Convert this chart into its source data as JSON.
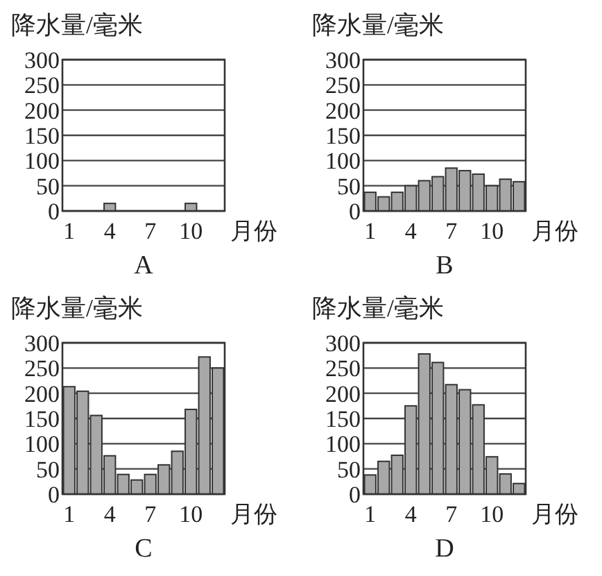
{
  "chart_data": [
    {
      "type": "bar",
      "title": "A",
      "ylabel": "降水量/毫米",
      "xlabel": "月份",
      "categories": [
        "1",
        null,
        null,
        "4",
        null,
        null,
        "7",
        null,
        null,
        "10",
        null,
        null
      ],
      "values": [
        0,
        0,
        0,
        15,
        0,
        0,
        0,
        0,
        0,
        15,
        0,
        0
      ],
      "color": "#a8a8a8",
      "ylim": [
        0,
        300
      ],
      "yticks": [
        0,
        50,
        100,
        150,
        200,
        250,
        300
      ],
      "grid": "y"
    },
    {
      "type": "bar",
      "title": "B",
      "ylabel": "降水量/毫米",
      "xlabel": "月份",
      "categories": [
        "1",
        null,
        null,
        "4",
        null,
        null,
        "7",
        null,
        null,
        "10",
        null,
        null
      ],
      "values": [
        37,
        28,
        37,
        50,
        60,
        68,
        85,
        80,
        73,
        50,
        63,
        58
      ],
      "color": "#a8a8a8",
      "ylim": [
        0,
        300
      ],
      "yticks": [
        0,
        50,
        100,
        150,
        200,
        250,
        300
      ],
      "grid": "y"
    },
    {
      "type": "bar",
      "title": "C",
      "ylabel": "降水量/毫米",
      "xlabel": "月份",
      "categories": [
        "1",
        null,
        null,
        "4",
        null,
        null,
        "7",
        null,
        null,
        "10",
        null,
        null
      ],
      "values": [
        213,
        204,
        156,
        76,
        39,
        28,
        39,
        58,
        85,
        168,
        272,
        250
      ],
      "color": "#a8a8a8",
      "ylim": [
        0,
        300
      ],
      "yticks": [
        0,
        50,
        100,
        150,
        200,
        250,
        300
      ],
      "grid": "y"
    },
    {
      "type": "bar",
      "title": "D",
      "ylabel": "降水量/毫米",
      "xlabel": "月份",
      "categories": [
        "1",
        null,
        null,
        "4",
        null,
        null,
        "7",
        null,
        null,
        "10",
        null,
        null
      ],
      "values": [
        38,
        65,
        77,
        175,
        278,
        261,
        217,
        207,
        177,
        74,
        40,
        21
      ],
      "color": "#a8a8a8",
      "ylim": [
        0,
        300
      ],
      "yticks": [
        0,
        50,
        100,
        150,
        200,
        250,
        300
      ],
      "grid": "y"
    }
  ]
}
